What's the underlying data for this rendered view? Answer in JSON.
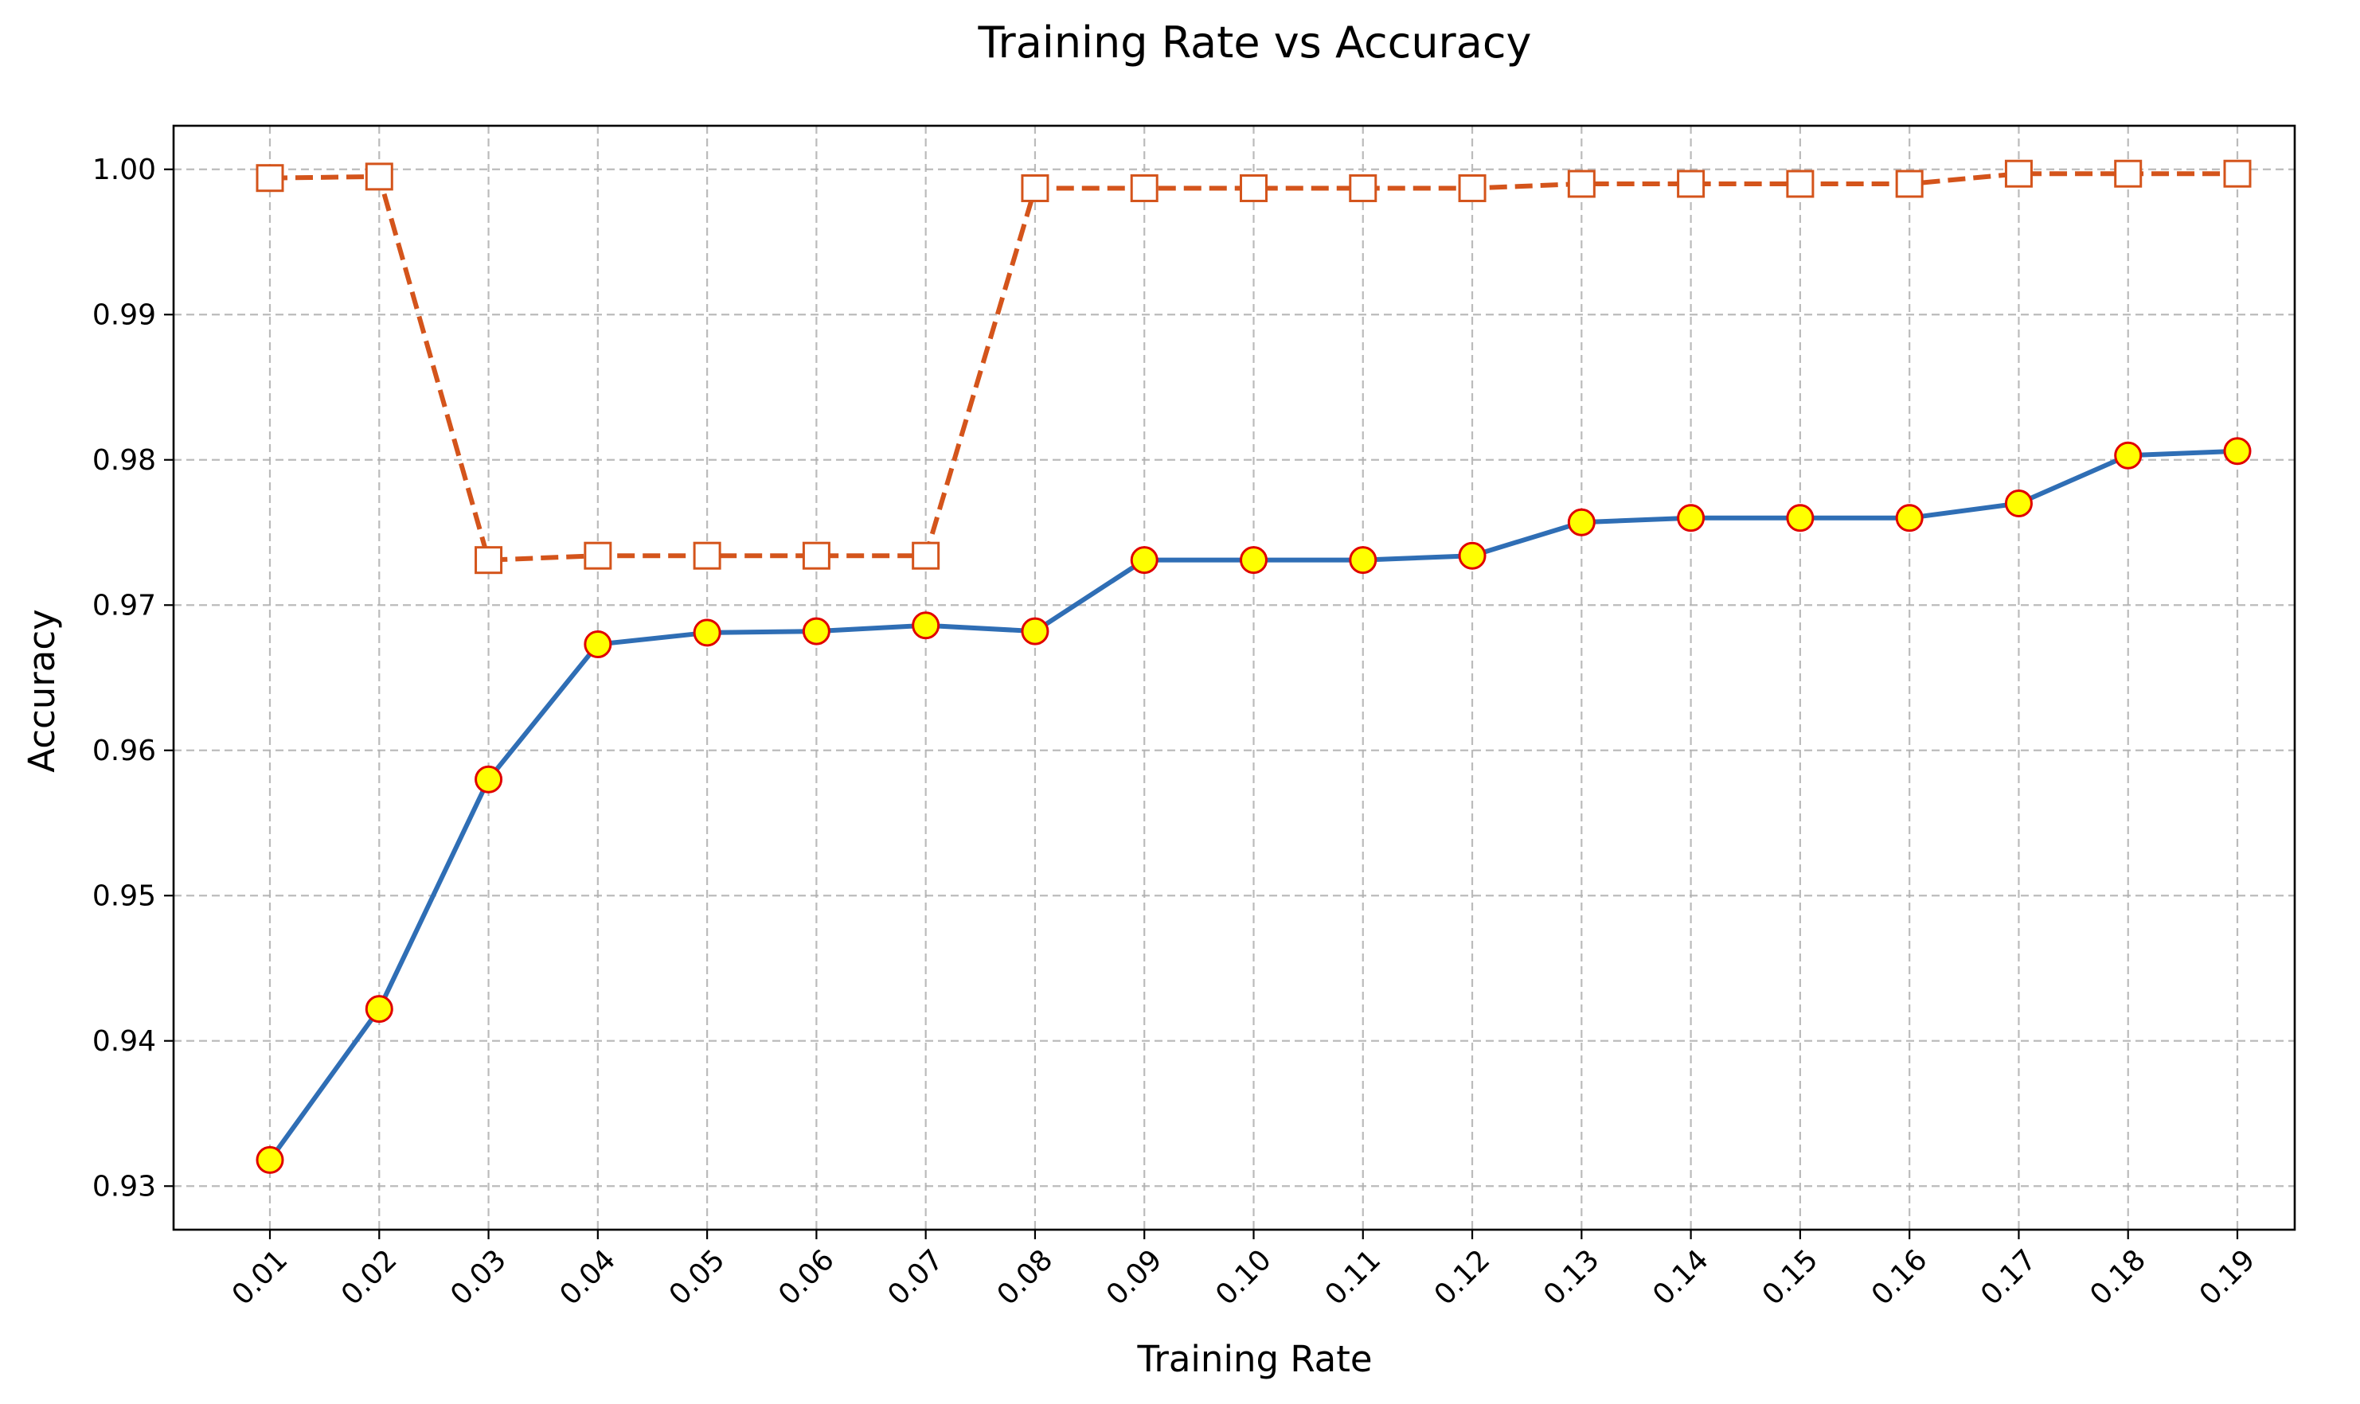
{
  "chart_data": {
    "type": "line",
    "title": "Training Rate vs Accuracy",
    "xlabel": "Training Rate",
    "ylabel": "Accuracy",
    "categories": [
      "0.01",
      "0.02",
      "0.03",
      "0.04",
      "0.05",
      "0.06",
      "0.07",
      "0.08",
      "0.09",
      "0.10",
      "0.11",
      "0.12",
      "0.13",
      "0.14",
      "0.15",
      "0.16",
      "0.17",
      "0.18",
      "0.19"
    ],
    "ylim": [
      0.927,
      1.003
    ],
    "yticks": [
      "0.93",
      "0.94",
      "0.95",
      "0.96",
      "0.97",
      "0.98",
      "0.99",
      "1.00"
    ],
    "ytick_values": [
      0.93,
      0.94,
      0.95,
      0.96,
      0.97,
      0.98,
      0.99,
      1.0
    ],
    "grid": true,
    "legend": "none",
    "series": [
      {
        "style": "solid-line-circle-markers",
        "line_color": "#2f6eb5",
        "marker_fill": "#ffff00",
        "marker_edge": "#e00000",
        "values": [
          0.9318,
          0.9422,
          0.958,
          0.9673,
          0.9681,
          0.9682,
          0.9686,
          0.9682,
          0.9731,
          0.9731,
          0.9731,
          0.9734,
          0.9757,
          0.976,
          0.976,
          0.976,
          0.977,
          0.9803,
          0.9806
        ]
      },
      {
        "style": "dashed-line-square-markers",
        "line_color": "#d4541b",
        "marker_fill": "#ffffff",
        "marker_edge": "#d4541b",
        "values": [
          0.9994,
          0.9995,
          0.9731,
          0.9734,
          0.9734,
          0.9734,
          0.9734,
          0.9987,
          0.9987,
          0.9987,
          0.9987,
          0.9987,
          0.999,
          0.999,
          0.999,
          0.999,
          0.9997,
          0.9997,
          0.9997
        ]
      }
    ]
  }
}
